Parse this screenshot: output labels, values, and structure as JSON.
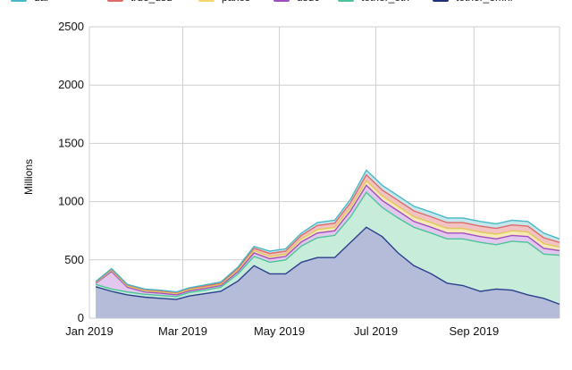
{
  "chart_data": {
    "type": "area",
    "stacked": true,
    "ylabel": "Millions",
    "xlabel": "",
    "ylim": [
      0,
      2500
    ],
    "xlim": [
      "2019-01-01",
      "2019-10-25"
    ],
    "grid": true,
    "legend_position": "top",
    "y_ticks": [
      "0",
      "500",
      "1000",
      "1500",
      "2000",
      "2500"
    ],
    "x_ticks": [
      {
        "date": "2019-01-01",
        "label": "Jan 2019"
      },
      {
        "date": "2019-03-01",
        "label": "Mar 2019"
      },
      {
        "date": "2019-05-01",
        "label": "May 2019"
      },
      {
        "date": "2019-07-01",
        "label": "Jul 2019"
      },
      {
        "date": "2019-09-01",
        "label": "Sep 2019"
      }
    ],
    "x": [
      "2019-01-05",
      "2019-01-15",
      "2019-01-25",
      "2019-02-05",
      "2019-02-15",
      "2019-02-25",
      "2019-03-05",
      "2019-03-15",
      "2019-03-25",
      "2019-04-05",
      "2019-04-15",
      "2019-04-25",
      "2019-05-05",
      "2019-05-15",
      "2019-05-25",
      "2019-06-05",
      "2019-06-15",
      "2019-06-25",
      "2019-07-05",
      "2019-07-15",
      "2019-07-25",
      "2019-08-05",
      "2019-08-15",
      "2019-08-25",
      "2019-09-05",
      "2019-09-15",
      "2019-09-25",
      "2019-10-05",
      "2019-10-15",
      "2019-10-25"
    ],
    "series": [
      {
        "name": "tether_omni",
        "color": "#2b3f8f",
        "fill": "#b4bcd9",
        "values": [
          270,
          230,
          200,
          180,
          170,
          160,
          190,
          210,
          230,
          320,
          450,
          380,
          380,
          480,
          520,
          520,
          650,
          780,
          700,
          560,
          450,
          380,
          300,
          280,
          230,
          250,
          240,
          200,
          170,
          120
        ]
      },
      {
        "name": "tether_eth",
        "color": "#4cc49a",
        "fill": "#c7ecd9",
        "values": [
          20,
          20,
          25,
          25,
          25,
          25,
          30,
          30,
          35,
          60,
          80,
          100,
          120,
          140,
          170,
          190,
          220,
          300,
          250,
          300,
          330,
          350,
          380,
          400,
          420,
          380,
          420,
          450,
          380,
          420
        ]
      },
      {
        "name": "usdc",
        "color": "#a24cc2",
        "fill": "#e2c8ee",
        "values": [
          10,
          150,
          40,
          20,
          20,
          15,
          15,
          15,
          15,
          20,
          30,
          30,
          30,
          35,
          40,
          40,
          50,
          60,
          60,
          60,
          50,
          50,
          50,
          50,
          50,
          50,
          50,
          50,
          50,
          40
        ]
      },
      {
        "name": "paxos",
        "color": "#e0c95a",
        "fill": "#f5e9b8",
        "values": [
          5,
          10,
          10,
          10,
          10,
          10,
          10,
          10,
          10,
          15,
          20,
          20,
          20,
          25,
          30,
          30,
          30,
          40,
          40,
          40,
          40,
          40,
          40,
          40,
          40,
          40,
          40,
          40,
          40,
          30
        ]
      },
      {
        "name": "true_usd",
        "color": "#e06a6a",
        "fill": "#f3c2c2",
        "values": [
          5,
          10,
          10,
          10,
          10,
          10,
          10,
          10,
          10,
          15,
          20,
          25,
          25,
          30,
          35,
          35,
          40,
          50,
          50,
          50,
          50,
          50,
          50,
          50,
          50,
          50,
          50,
          50,
          50,
          40
        ]
      },
      {
        "name": "dai",
        "color": "#48b8c7",
        "fill": "#c4e7ec",
        "values": [
          5,
          5,
          5,
          5,
          5,
          5,
          5,
          10,
          10,
          10,
          15,
          20,
          20,
          20,
          25,
          25,
          30,
          40,
          40,
          40,
          40,
          40,
          40,
          40,
          40,
          40,
          40,
          40,
          40,
          30
        ]
      }
    ],
    "legend": [
      {
        "name": "dai",
        "color": "#48b8c7"
      },
      {
        "name": "true_usd",
        "color": "#e06a6a"
      },
      {
        "name": "paxos",
        "color": "#f5d66e"
      },
      {
        "name": "usdc",
        "color": "#a24cc2"
      },
      {
        "name": "tether_eth",
        "color": "#4cc49a"
      },
      {
        "name": "tether_omni",
        "color": "#1f2f7a"
      }
    ]
  }
}
